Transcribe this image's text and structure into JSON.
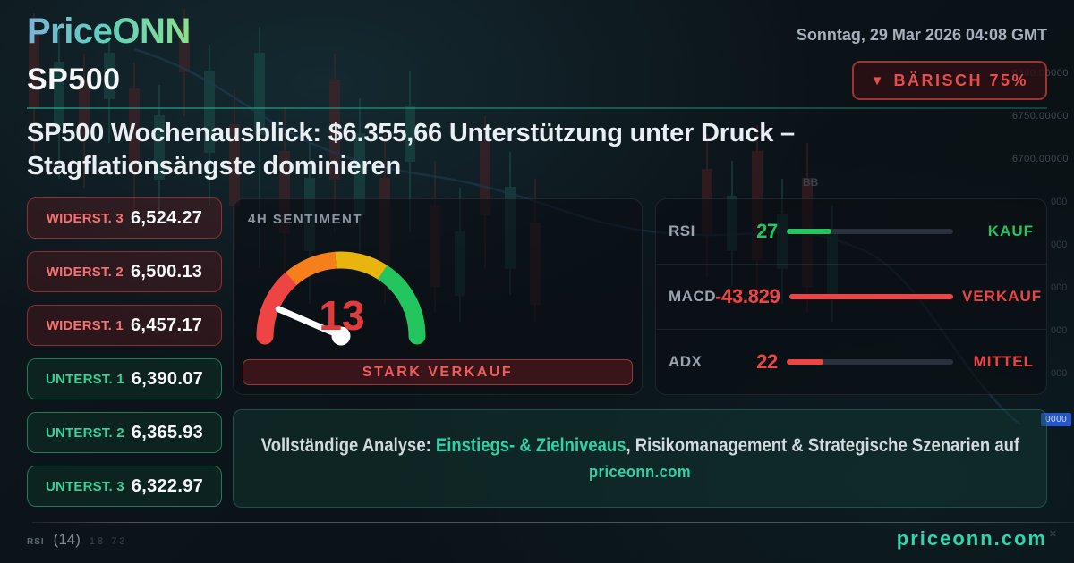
{
  "header": {
    "logo": "PriceONN",
    "datetime": "Sonntag, 29 Mar 2026 04:08 GMT"
  },
  "symbol": "SP500",
  "signal_badge": {
    "icon": "▼",
    "label": "BÄRISCH 75%"
  },
  "headline": {
    "line1": "SP500 Wochenausblick: $6.355,66 Unterstützung unter Druck –",
    "line2": "Stagflationsängste dominieren"
  },
  "levels": {
    "resistances": [
      {
        "label": "WIDERST. 3",
        "value": "6,524.27"
      },
      {
        "label": "WIDERST. 2",
        "value": "6,500.13"
      },
      {
        "label": "WIDERST. 1",
        "value": "6,457.17"
      }
    ],
    "supports": [
      {
        "label": "UNTERST. 1",
        "value": "6,390.07"
      },
      {
        "label": "UNTERST. 2",
        "value": "6,365.93"
      },
      {
        "label": "UNTERST. 3",
        "value": "6,322.97"
      }
    ]
  },
  "sentiment": {
    "title": "4H SENTIMENT",
    "value": 13,
    "status": "STARK VERKAUF",
    "gauge_colors": {
      "red": "#ef4444",
      "orange": "#f77f1b",
      "yellow": "#e7b50e",
      "green": "#22c55e"
    },
    "value_color": "#e23b3b"
  },
  "indicators": [
    {
      "name": "RSI",
      "value": "27",
      "pct": 27,
      "status": "KAUF",
      "color": "#22c55e"
    },
    {
      "name": "MACD",
      "value": "-43.829",
      "pct": 100,
      "status": "VERKAUF",
      "color": "#ef4444"
    },
    {
      "name": "ADX",
      "value": "22",
      "pct": 22,
      "status": "MITTEL",
      "color": "#ef4444"
    }
  ],
  "banner": {
    "prefix": "Vollständige Analyse: ",
    "highlight": "Einstiegs- & Zielniveaus",
    "suffix": ", Risikomanagement & Strategische Szenarien auf",
    "site": "priceonn.com"
  },
  "footer": {
    "watermark": "priceonn.com",
    "chart_label": "RSI",
    "chart_period": "(14)",
    "chart_values": "18 73",
    "close_icon": "×"
  },
  "background": {
    "axis_labels": [
      "6800.00000",
      "6750.00000",
      "6700.00000"
    ],
    "gutter_fragments": [
      "000",
      "000",
      "000",
      "000",
      "000"
    ],
    "price_tag": "0000",
    "bb_label": "BB"
  },
  "colors": {
    "teal": "#2dd4a8",
    "red": "#ef4444",
    "green": "#22c55e"
  }
}
